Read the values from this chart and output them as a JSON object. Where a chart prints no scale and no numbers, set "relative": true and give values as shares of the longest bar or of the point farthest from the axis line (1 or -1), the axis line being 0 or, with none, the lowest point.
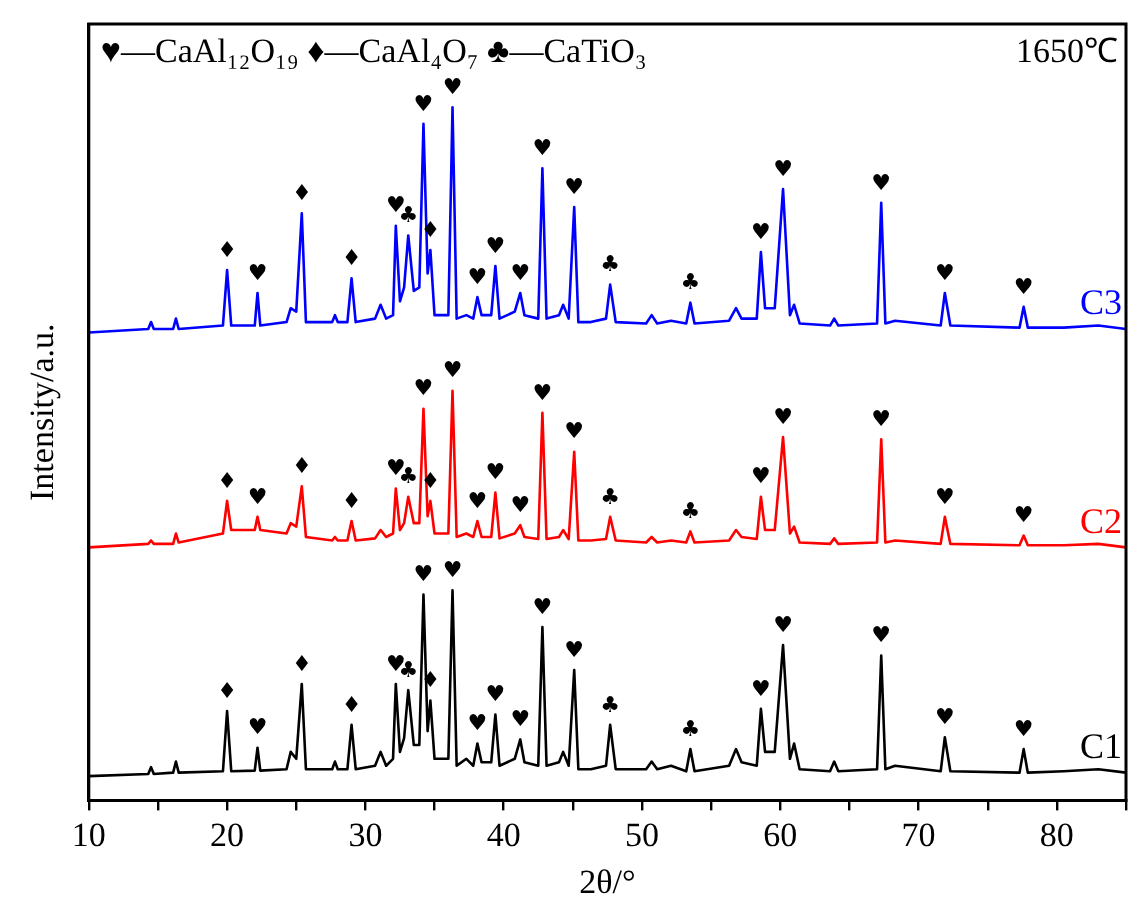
{
  "chart_data": {
    "type": "line",
    "relative": true,
    "xlabel": "2θ/°",
    "ylabel": "Intensity/a.u.",
    "xlim": [
      10,
      85
    ],
    "xticks": [
      10,
      {
        "value": 15,
        "label": null
      },
      20,
      {
        "value": 25,
        "label": null
      },
      30,
      {
        "value": 35,
        "label": null
      },
      40,
      {
        "value": 45,
        "label": null
      },
      50,
      {
        "value": 55,
        "label": null
      },
      60,
      {
        "value": 65,
        "label": null
      },
      70,
      {
        "value": 75,
        "label": null
      },
      80,
      {
        "value": 85,
        "label": null
      }
    ],
    "x": [
      10,
      14.3,
      14.5,
      14.7,
      16.1,
      16.3,
      16.5,
      19.7,
      20.0,
      20.3,
      22.0,
      22.2,
      22.4,
      24.3,
      24.6,
      25.0,
      25.4,
      25.7,
      27.6,
      27.8,
      28.0,
      28.7,
      29.0,
      29.3,
      30.7,
      31.1,
      31.5,
      32.0,
      32.2,
      32.5,
      32.8,
      33.1,
      33.5,
      33.9,
      34.2,
      34.5,
      34.7,
      35.0,
      35.6,
      36.0,
      36.3,
      36.6,
      37.3,
      37.8,
      38.1,
      38.4,
      39.1,
      39.4,
      39.7,
      40.8,
      41.2,
      41.5,
      42.5,
      42.8,
      43.1,
      44.0,
      44.3,
      44.7,
      45.1,
      45.4,
      46.3,
      47.4,
      47.7,
      48.1,
      50.3,
      50.7,
      51.1,
      52.1,
      53.2,
      53.5,
      53.8,
      56.3,
      56.8,
      57.2,
      58.3,
      58.6,
      58.9,
      59.6,
      60.2,
      60.7,
      61.0,
      61.4,
      63.6,
      63.9,
      64.2,
      67.0,
      67.3,
      67.6,
      68.3,
      71.6,
      71.9,
      72.3,
      77.3,
      77.6,
      77.9,
      80.5,
      83,
      85
    ],
    "series": [
      {
        "name": "C1",
        "color": "#000000",
        "values": [
          0.035,
          0.038,
          0.048,
          0.038,
          0.04,
          0.056,
          0.04,
          0.042,
          0.129,
          0.042,
          0.043,
          0.076,
          0.043,
          0.045,
          0.07,
          0.06,
          0.168,
          0.045,
          0.045,
          0.056,
          0.045,
          0.045,
          0.109,
          0.045,
          0.05,
          0.07,
          0.05,
          0.06,
          0.168,
          0.07,
          0.09,
          0.159,
          0.08,
          0.08,
          0.297,
          0.1,
          0.144,
          0.06,
          0.06,
          0.06,
          0.303,
          0.05,
          0.06,
          0.05,
          0.082,
          0.055,
          0.055,
          0.124,
          0.05,
          0.06,
          0.088,
          0.055,
          0.05,
          0.25,
          0.05,
          0.055,
          0.07,
          0.05,
          0.188,
          0.045,
          0.045,
          0.05,
          0.109,
          0.045,
          0.045,
          0.056,
          0.045,
          0.05,
          0.042,
          0.074,
          0.042,
          0.05,
          0.074,
          0.055,
          0.05,
          0.132,
          0.07,
          0.07,
          0.224,
          0.06,
          0.082,
          0.045,
          0.042,
          0.056,
          0.042,
          0.045,
          0.209,
          0.045,
          0.05,
          0.042,
          0.091,
          0.042,
          0.04,
          0.074,
          0.04,
          0.042,
          0.045,
          0.04
        ]
      },
      {
        "name": "C2",
        "color": "#ff0000",
        "values": [
          0.365,
          0.37,
          0.375,
          0.37,
          0.37,
          0.385,
          0.372,
          0.385,
          0.432,
          0.39,
          0.39,
          0.409,
          0.39,
          0.385,
          0.4,
          0.395,
          0.453,
          0.38,
          0.375,
          0.38,
          0.375,
          0.375,
          0.403,
          0.375,
          0.378,
          0.39,
          0.38,
          0.385,
          0.45,
          0.39,
          0.4,
          0.438,
          0.4,
          0.4,
          0.565,
          0.41,
          0.432,
          0.385,
          0.385,
          0.385,
          0.591,
          0.38,
          0.385,
          0.38,
          0.403,
          0.38,
          0.38,
          0.444,
          0.378,
          0.385,
          0.397,
          0.38,
          0.377,
          0.559,
          0.377,
          0.38,
          0.39,
          0.377,
          0.503,
          0.375,
          0.375,
          0.377,
          0.409,
          0.375,
          0.372,
          0.38,
          0.372,
          0.375,
          0.372,
          0.388,
          0.372,
          0.375,
          0.39,
          0.38,
          0.377,
          0.438,
          0.39,
          0.39,
          0.524,
          0.385,
          0.395,
          0.372,
          0.37,
          0.378,
          0.37,
          0.372,
          0.521,
          0.372,
          0.375,
          0.37,
          0.409,
          0.37,
          0.368,
          0.382,
          0.368,
          0.368,
          0.37,
          0.365
        ]
      },
      {
        "name": "C3",
        "color": "#0000ff",
        "values": [
          0.675,
          0.68,
          0.69,
          0.68,
          0.68,
          0.695,
          0.68,
          0.685,
          0.765,
          0.685,
          0.685,
          0.732,
          0.685,
          0.69,
          0.71,
          0.705,
          0.847,
          0.69,
          0.69,
          0.7,
          0.69,
          0.69,
          0.753,
          0.69,
          0.695,
          0.715,
          0.695,
          0.7,
          0.829,
          0.72,
          0.74,
          0.815,
          0.735,
          0.74,
          0.976,
          0.76,
          0.794,
          0.7,
          0.7,
          0.7,
          1,
          0.695,
          0.7,
          0.695,
          0.726,
          0.7,
          0.7,
          0.771,
          0.695,
          0.705,
          0.732,
          0.7,
          0.695,
          0.912,
          0.695,
          0.7,
          0.715,
          0.695,
          0.856,
          0.69,
          0.69,
          0.695,
          0.744,
          0.69,
          0.688,
          0.7,
          0.688,
          0.692,
          0.688,
          0.718,
          0.688,
          0.692,
          0.71,
          0.695,
          0.695,
          0.791,
          0.71,
          0.71,
          0.882,
          0.7,
          0.715,
          0.688,
          0.685,
          0.695,
          0.685,
          0.688,
          0.862,
          0.688,
          0.692,
          0.685,
          0.732,
          0.685,
          0.682,
          0.712,
          0.682,
          0.682,
          0.685,
          0.68
        ]
      }
    ],
    "annotations": [
      "♥—CaAl₁₂O₁₉ ♦—CaAl₄O₇ ♣—CaTiO₃",
      "1650℃",
      {
        "text": "♦",
        "x": 20.0,
        "y": 0.129
      },
      {
        "text": "♥",
        "x": 22.2,
        "y": 0.076
      },
      {
        "text": "♦",
        "x": 25.4,
        "y": 0.168
      },
      {
        "text": "♦",
        "x": 29.0,
        "y": 0.109
      },
      {
        "text": "♥",
        "x": 32.2,
        "y": 0.168
      },
      {
        "text": "♣",
        "x": 33.1,
        "y": 0.159
      },
      {
        "text": "♥",
        "x": 34.2,
        "y": 0.297
      },
      {
        "text": "♦",
        "x": 34.7,
        "y": 0.144
      },
      {
        "text": "♥",
        "x": 36.3,
        "y": 0.303
      },
      {
        "text": "♥",
        "x": 38.1,
        "y": 0.082
      },
      {
        "text": "♥",
        "x": 39.4,
        "y": 0.124
      },
      {
        "text": "♥",
        "x": 41.2,
        "y": 0.088
      },
      {
        "text": "♥",
        "x": 42.8,
        "y": 0.25
      },
      {
        "text": "♥",
        "x": 45.1,
        "y": 0.188
      },
      {
        "text": "♣",
        "x": 47.7,
        "y": 0.109
      },
      {
        "text": "♣",
        "x": 53.5,
        "y": 0.074
      },
      {
        "text": "♥",
        "x": 58.6,
        "y": 0.132
      },
      {
        "text": "♥",
        "x": 60.2,
        "y": 0.224
      },
      {
        "text": "♥",
        "x": 67.3,
        "y": 0.209
      },
      {
        "text": "♥",
        "x": 71.9,
        "y": 0.091
      },
      {
        "text": "♥",
        "x": 77.6,
        "y": 0.074
      },
      {
        "text": "♦",
        "x": 20.0,
        "y": 0.432
      },
      {
        "text": "♥",
        "x": 22.2,
        "y": 0.409
      },
      {
        "text": "♦",
        "x": 25.4,
        "y": 0.453
      },
      {
        "text": "♦",
        "x": 29.0,
        "y": 0.403
      },
      {
        "text": "♥",
        "x": 32.2,
        "y": 0.45
      },
      {
        "text": "♣",
        "x": 33.1,
        "y": 0.438
      },
      {
        "text": "♥",
        "x": 34.2,
        "y": 0.565
      },
      {
        "text": "♦",
        "x": 34.7,
        "y": 0.432
      },
      {
        "text": "♥",
        "x": 36.3,
        "y": 0.591
      },
      {
        "text": "♥",
        "x": 38.1,
        "y": 0.403
      },
      {
        "text": "♥",
        "x": 39.4,
        "y": 0.444
      },
      {
        "text": "♥",
        "x": 41.2,
        "y": 0.397
      },
      {
        "text": "♥",
        "x": 42.8,
        "y": 0.559
      },
      {
        "text": "♥",
        "x": 45.1,
        "y": 0.503
      },
      {
        "text": "♣",
        "x": 47.7,
        "y": 0.409
      },
      {
        "text": "♣",
        "x": 53.5,
        "y": 0.388
      },
      {
        "text": "♥",
        "x": 58.6,
        "y": 0.438
      },
      {
        "text": "♥",
        "x": 60.2,
        "y": 0.524
      },
      {
        "text": "♥",
        "x": 67.3,
        "y": 0.521
      },
      {
        "text": "♥",
        "x": 71.9,
        "y": 0.409
      },
      {
        "text": "♥",
        "x": 77.6,
        "y": 0.382
      },
      {
        "text": "♦",
        "x": 20.0,
        "y": 0.765
      },
      {
        "text": "♥",
        "x": 22.2,
        "y": 0.732
      },
      {
        "text": "♦",
        "x": 25.4,
        "y": 0.847
      },
      {
        "text": "♦",
        "x": 29.0,
        "y": 0.753
      },
      {
        "text": "♥",
        "x": 32.2,
        "y": 0.829
      },
      {
        "text": "♣",
        "x": 33.1,
        "y": 0.815
      },
      {
        "text": "♥",
        "x": 34.2,
        "y": 0.976
      },
      {
        "text": "♦",
        "x": 34.7,
        "y": 0.794
      },
      {
        "text": "♥",
        "x": 36.3,
        "y": 1
      },
      {
        "text": "♥",
        "x": 38.1,
        "y": 0.726
      },
      {
        "text": "♥",
        "x": 39.4,
        "y": 0.771
      },
      {
        "text": "♥",
        "x": 41.2,
        "y": 0.732
      },
      {
        "text": "♥",
        "x": 42.8,
        "y": 0.912
      },
      {
        "text": "♥",
        "x": 45.1,
        "y": 0.856
      },
      {
        "text": "♣",
        "x": 47.7,
        "y": 0.744
      },
      {
        "text": "♣",
        "x": 53.5,
        "y": 0.718
      },
      {
        "text": "♥",
        "x": 58.6,
        "y": 0.791
      },
      {
        "text": "♥",
        "x": 60.2,
        "y": 0.882
      },
      {
        "text": "♥",
        "x": 67.3,
        "y": 0.862
      },
      {
        "text": "♥",
        "x": 71.9,
        "y": 0.732
      },
      {
        "text": "♥",
        "x": 77.6,
        "y": 0.712
      }
    ]
  }
}
